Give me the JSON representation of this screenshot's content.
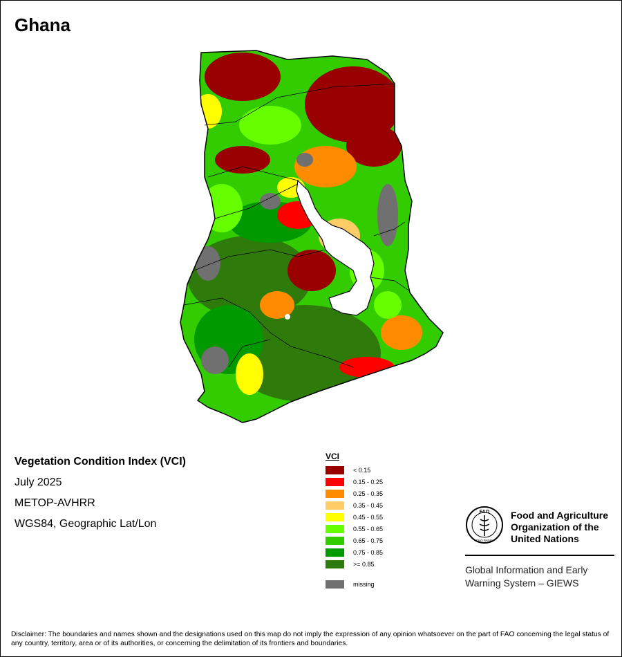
{
  "map": {
    "title": "Ghana",
    "index_title": "Vegetation Condition Index (VCI)",
    "period": "July 2025",
    "sensor": "METOP-AVHRR",
    "projection": "WGS84, Geographic Lat/Lon"
  },
  "legend": {
    "title": "VCI",
    "classes": [
      {
        "label": "< 0.15",
        "color": "#990000"
      },
      {
        "label": "0.15 - 0.25",
        "color": "#ff0000"
      },
      {
        "label": "0.25 - 0.35",
        "color": "#ff8c00"
      },
      {
        "label": "0.35 - 0.45",
        "color": "#ffcc66"
      },
      {
        "label": "0.45 - 0.55",
        "color": "#ffff00"
      },
      {
        "label": "0.55 - 0.65",
        "color": "#66ff00"
      },
      {
        "label": "0.65 - 0.75",
        "color": "#33cc00"
      },
      {
        "label": "0.75 - 0.85",
        "color": "#009900"
      },
      {
        "label": ">= 0.85",
        "color": "#2e7a0a"
      }
    ],
    "missing": {
      "label": "missing",
      "color": "#707070"
    }
  },
  "organization": {
    "name_lines": [
      "Food and Agriculture",
      "Organization of the",
      "United Nations"
    ],
    "emblem_letters": "FAO",
    "emblem_motto": "FIAT PANIS",
    "program_lines": [
      "Global Information and Early",
      "Warning System – GIEWS"
    ]
  },
  "disclaimer": "Disclaimer: The boundaries and names shown and the designations used on this map do not imply the expression of any opinion whatsoever on the part of FAO concerning the legal status of any country, territory, area or of its authorities, or concerning the delimitation of its frontiers and boundaries."
}
